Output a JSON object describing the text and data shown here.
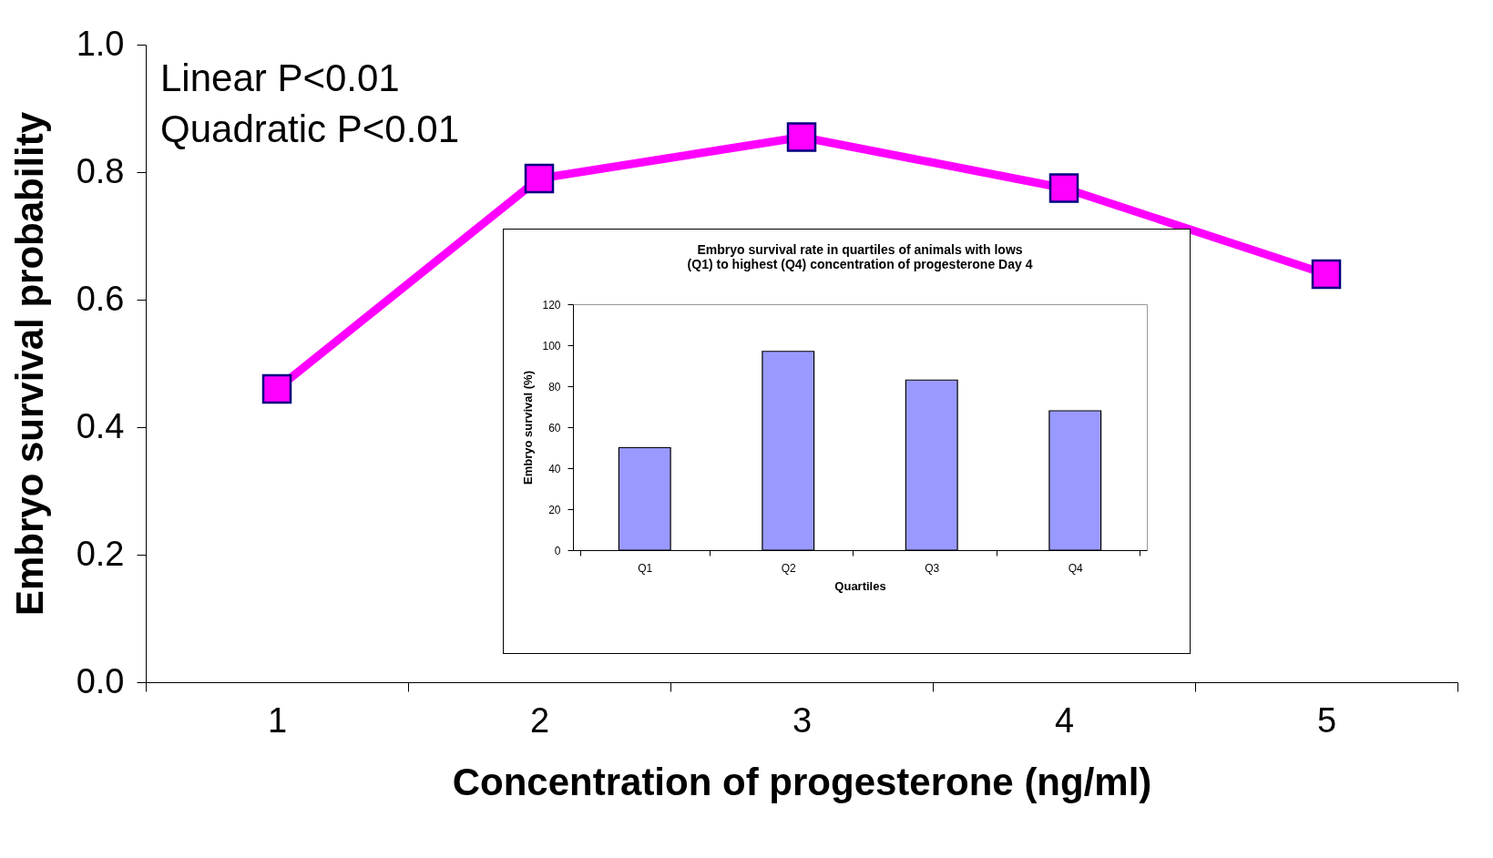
{
  "chart_data": [
    {
      "type": "line",
      "xlabel": "Concentration of progesterone (ng/ml)",
      "ylabel": "Embryo survival probability",
      "categories": [
        "1",
        "2",
        "3",
        "4",
        "5"
      ],
      "series": [
        {
          "color": "#ff00ff",
          "values": [
            0.46,
            0.79,
            0.855,
            0.775,
            0.64
          ]
        }
      ],
      "ylim": [
        0,
        1
      ],
      "yticks": [
        {
          "value": 0,
          "label": "0.0"
        },
        0.2,
        0.4,
        0.6,
        0.8,
        {
          "value": 1,
          "label": "1.0"
        }
      ],
      "marker": "square",
      "line_style": "solid",
      "grid": false,
      "annotations": [
        "Linear P<0.01",
        "Quadratic P<0.01"
      ]
    },
    {
      "type": "bar",
      "title": "Embryo survival rate in quartiles of animals with lows (Q1) to highest (Q4) concentration of progesterone Day 4",
      "xlabel": "Quartiles",
      "ylabel": "Embryo survival (%)",
      "categories": [
        "Q1",
        "Q2",
        "Q3",
        "Q4"
      ],
      "series": [
        {
          "color": "#9999ff",
          "values": [
            50,
            97,
            83,
            68
          ]
        }
      ],
      "ylim": [
        0,
        120
      ],
      "yticks": [
        0,
        20,
        40,
        60,
        80,
        100,
        120
      ],
      "grid": false
    }
  ]
}
